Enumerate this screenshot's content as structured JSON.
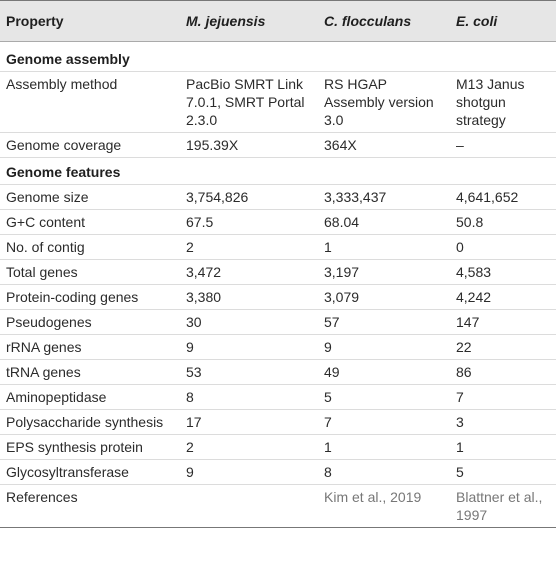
{
  "header": {
    "property": "Property",
    "col1": "M. jejuensis",
    "col2": "C. flocculans",
    "col3": "E. coli"
  },
  "sections": {
    "assembly": "Genome assembly",
    "features": "Genome features"
  },
  "assembly_rows": [
    {
      "label": "Assembly method",
      "v1": "PacBio SMRT Link 7.0.1, SMRT Portal 2.3.0",
      "v2": "RS HGAP Assembly version 3.0",
      "v3": "M13 Janus shotgun strategy"
    },
    {
      "label": "Genome coverage",
      "v1": "195.39X",
      "v2": "364X",
      "v3": "–"
    }
  ],
  "feature_rows": [
    {
      "label": "Genome size",
      "v1": "3,754,826",
      "v2": "3,333,437",
      "v3": "4,641,652"
    },
    {
      "label": "G+C content",
      "v1": "67.5",
      "v2": "68.04",
      "v3": "50.8"
    },
    {
      "label": "No. of contig",
      "v1": "2",
      "v2": "1",
      "v3": "0"
    },
    {
      "label": "Total genes",
      "v1": "3,472",
      "v2": "3,197",
      "v3": "4,583"
    },
    {
      "label": "Protein-coding genes",
      "v1": "3,380",
      "v2": "3,079",
      "v3": "4,242"
    },
    {
      "label": "Pseudogenes",
      "v1": "30",
      "v2": "57",
      "v3": "147"
    },
    {
      "label": "rRNA genes",
      "v1": "9",
      "v2": "9",
      "v3": "22"
    },
    {
      "label": "tRNA genes",
      "v1": "53",
      "v2": "49",
      "v3": "86"
    },
    {
      "label": "Aminopeptidase",
      "v1": "8",
      "v2": "5",
      "v3": "7"
    },
    {
      "label": "Polysaccharide synthesis",
      "v1": "17",
      "v2": "7",
      "v3": "3"
    },
    {
      "label": "EPS synthesis protein",
      "v1": "2",
      "v2": "1",
      "v3": "1"
    },
    {
      "label": "Glycosyltransferase",
      "v1": "9",
      "v2": "8",
      "v3": "5"
    },
    {
      "label": "References",
      "v1": "",
      "v2": "Kim et al., 2019",
      "v3": "Blattner et al., 1997"
    }
  ]
}
